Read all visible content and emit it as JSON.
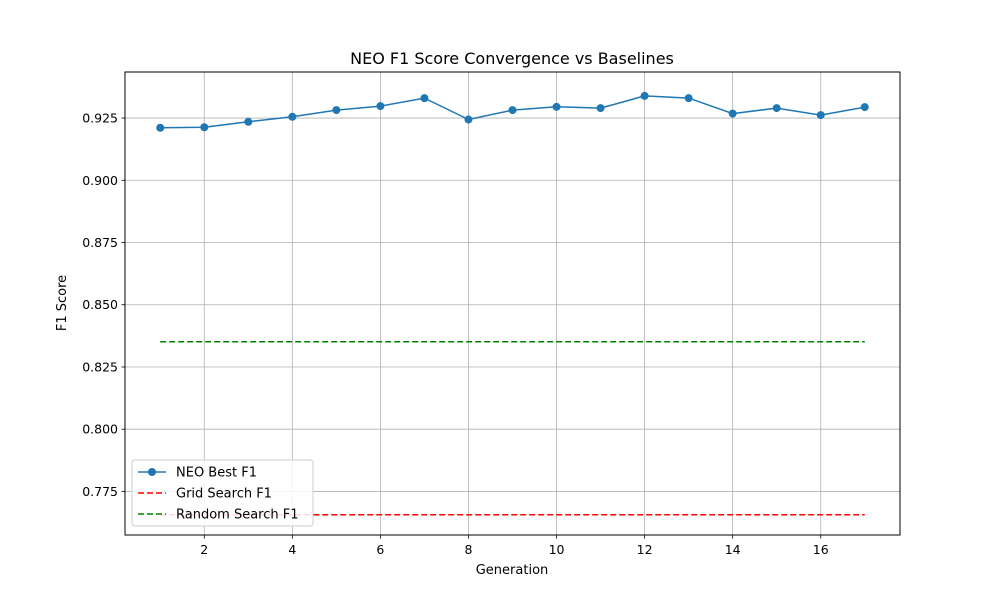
{
  "chart_data": {
    "type": "line",
    "title": "NEO F1 Score Convergence vs Baselines",
    "xlabel": "Generation",
    "ylabel": "F1 Score",
    "xlim": [
      0.2,
      17.8
    ],
    "ylim": [
      0.7575,
      0.9435
    ],
    "xticks": [
      2,
      4,
      6,
      8,
      10,
      12,
      14,
      16
    ],
    "yticks": [
      0.775,
      0.8,
      0.825,
      0.85,
      0.875,
      0.9,
      0.925
    ],
    "grid": true,
    "legend_position": "lower-left",
    "series": [
      {
        "name": "NEO Best F1",
        "style": "solid-marker",
        "color": "#1f77b4",
        "x": [
          1,
          2,
          3,
          4,
          5,
          6,
          7,
          8,
          9,
          10,
          11,
          12,
          13,
          14,
          15,
          16,
          17
        ],
        "y": [
          0.9211,
          0.9213,
          0.9235,
          0.9255,
          0.9282,
          0.9298,
          0.933,
          0.9244,
          0.9282,
          0.9295,
          0.929,
          0.9339,
          0.933,
          0.9268,
          0.929,
          0.9262,
          0.9294
        ]
      },
      {
        "name": "Grid Search F1",
        "style": "dashed",
        "color": "#ff0000",
        "x": [
          1,
          17
        ],
        "y": [
          0.7656,
          0.7656
        ]
      },
      {
        "name": "Random Search F1",
        "style": "dashed",
        "color": "#008000",
        "x": [
          1,
          17
        ],
        "y": [
          0.8351,
          0.8351
        ]
      }
    ]
  }
}
